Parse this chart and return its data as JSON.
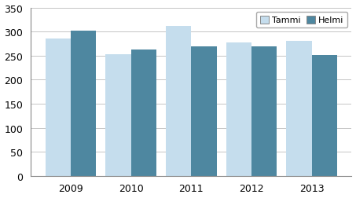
{
  "years": [
    "2009",
    "2010",
    "2011",
    "2012",
    "2013"
  ],
  "tammi": [
    285,
    253,
    311,
    278,
    280
  ],
  "helmi": [
    302,
    263,
    269,
    269,
    251
  ],
  "color_tammi": "#c5dded",
  "color_helmi": "#4e87a0",
  "legend_tammi": "Tammi",
  "legend_helmi": "Helmi",
  "ylim": [
    0,
    350
  ],
  "yticks": [
    0,
    50,
    100,
    150,
    200,
    250,
    300,
    350
  ],
  "background_color": "#ffffff",
  "grid_color": "#bbbbbb",
  "bar_width": 0.42
}
